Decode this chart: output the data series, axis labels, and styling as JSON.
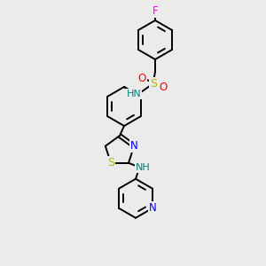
{
  "background_color": "#ebebeb",
  "atom_colors": {
    "C": "#000000",
    "N": "#0000ff",
    "O": "#ff0000",
    "S": "#b8b800",
    "F": "#ff00ff",
    "H": "#008080",
    "bond": "#000000"
  },
  "figsize": [
    3.0,
    3.0
  ],
  "dpi": 100,
  "bond_lw": 1.4,
  "font_size": 7.5
}
